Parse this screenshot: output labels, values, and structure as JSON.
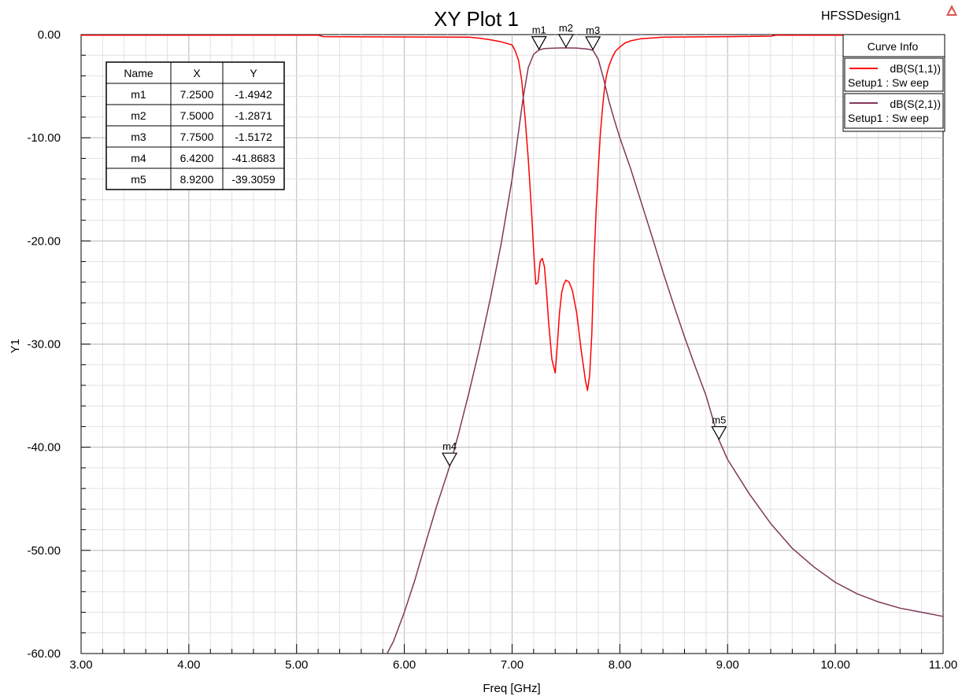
{
  "header": {
    "title": "XY Plot 1",
    "design_name": "HFSSDesign1",
    "logo_icon": "hfss-logo-icon"
  },
  "marker_table": {
    "headers": [
      "Name",
      "X",
      "Y"
    ],
    "rows": [
      [
        "m1",
        "7.2500",
        "-1.4942"
      ],
      [
        "m2",
        "7.5000",
        "-1.2871"
      ],
      [
        "m3",
        "7.7500",
        "-1.5172"
      ],
      [
        "m4",
        "6.4200",
        "-41.8683"
      ],
      [
        "m5",
        "8.9200",
        "-39.3059"
      ]
    ]
  },
  "curve_info": {
    "title": "Curve Info",
    "items": [
      {
        "name": "dB(S(1,1))",
        "setup": "Setup1 : Sw eep",
        "color": "#ff0000"
      },
      {
        "name": "dB(S(2,1))",
        "setup": "Setup1 : Sw eep",
        "color": "#80385a"
      }
    ]
  },
  "chart_data": {
    "type": "line",
    "title": "XY Plot 1",
    "xlabel": "Freq [GHz]",
    "ylabel": "Y1",
    "xlim": [
      3,
      11
    ],
    "ylim": [
      -60,
      0
    ],
    "grid": true,
    "legend_position": "top-right",
    "x_ticks": [
      "3.00",
      "4.00",
      "5.00",
      "6.00",
      "7.00",
      "8.00",
      "9.00",
      "10.00",
      "11.00"
    ],
    "y_ticks": [
      "0.00",
      "-10.00",
      "-20.00",
      "-30.00",
      "-40.00",
      "-50.00",
      "-60.00"
    ],
    "series": [
      {
        "name": "dB(S(1,1))",
        "color": "#ff0000",
        "x": [
          3.0,
          5.2,
          5.25,
          6.6,
          6.7,
          6.8,
          6.9,
          7.0,
          7.03,
          7.06,
          7.09,
          7.12,
          7.15,
          7.18,
          7.2,
          7.22,
          7.24,
          7.26,
          7.28,
          7.3,
          7.32,
          7.34,
          7.37,
          7.4,
          7.42,
          7.44,
          7.46,
          7.48,
          7.5,
          7.53,
          7.56,
          7.6,
          7.64,
          7.68,
          7.7,
          7.72,
          7.74,
          7.76,
          7.78,
          7.8,
          7.82,
          7.84,
          7.86,
          7.88,
          7.9,
          7.93,
          7.96,
          8.0,
          8.05,
          8.1,
          8.2,
          8.4,
          9.0,
          9.4,
          9.45,
          11.0
        ],
        "y": [
          -0.05,
          -0.05,
          -0.2,
          -0.25,
          -0.35,
          -0.5,
          -0.7,
          -1.0,
          -1.6,
          -2.5,
          -4.5,
          -8.0,
          -12.0,
          -17.0,
          -21.0,
          -24.2,
          -24.0,
          -22.0,
          -21.7,
          -22.5,
          -25.0,
          -28.0,
          -31.5,
          -32.8,
          -30.0,
          -27.0,
          -25.0,
          -24.2,
          -23.8,
          -24.0,
          -24.8,
          -27.0,
          -30.5,
          -33.5,
          -34.5,
          -33.0,
          -29.0,
          -22.0,
          -17.0,
          -13.0,
          -9.5,
          -7.0,
          -5.0,
          -3.8,
          -3.0,
          -2.2,
          -1.6,
          -1.2,
          -0.8,
          -0.6,
          -0.4,
          -0.25,
          -0.2,
          -0.15,
          -0.05,
          -0.05
        ]
      },
      {
        "name": "dB(S(2,1))",
        "color": "#80385a",
        "x": [
          5.84,
          5.9,
          6.0,
          6.1,
          6.2,
          6.3,
          6.42,
          6.5,
          6.6,
          6.7,
          6.8,
          6.9,
          7.0,
          7.05,
          7.1,
          7.15,
          7.2,
          7.25,
          7.3,
          7.4,
          7.5,
          7.6,
          7.7,
          7.75,
          7.8,
          7.85,
          7.9,
          7.95,
          8.0,
          8.1,
          8.2,
          8.3,
          8.4,
          8.5,
          8.6,
          8.7,
          8.8,
          8.92,
          9.0,
          9.2,
          9.4,
          9.6,
          9.8,
          10.0,
          10.2,
          10.4,
          10.6,
          10.8,
          11.0
        ],
        "y": [
          -60.0,
          -58.8,
          -56.0,
          -52.8,
          -49.2,
          -45.7,
          -41.87,
          -38.8,
          -34.7,
          -30.3,
          -25.5,
          -20.2,
          -14.0,
          -10.2,
          -6.3,
          -3.2,
          -1.9,
          -1.49,
          -1.35,
          -1.3,
          -1.29,
          -1.3,
          -1.4,
          -1.52,
          -2.4,
          -4.3,
          -6.5,
          -8.3,
          -10.0,
          -13.0,
          -16.3,
          -19.6,
          -23.0,
          -26.2,
          -29.3,
          -32.2,
          -35.0,
          -39.31,
          -41.2,
          -44.5,
          -47.4,
          -49.8,
          -51.6,
          -53.1,
          -54.2,
          -55.0,
          -55.6,
          -56.0,
          -56.4
        ]
      }
    ],
    "markers": [
      {
        "name": "m1",
        "x": 7.25,
        "y": -1.4942
      },
      {
        "name": "m2",
        "x": 7.5,
        "y": -1.2871
      },
      {
        "name": "m3",
        "x": 7.75,
        "y": -1.5172
      },
      {
        "name": "m4",
        "x": 6.42,
        "y": -41.8683
      },
      {
        "name": "m5",
        "x": 8.92,
        "y": -39.3059
      }
    ]
  }
}
